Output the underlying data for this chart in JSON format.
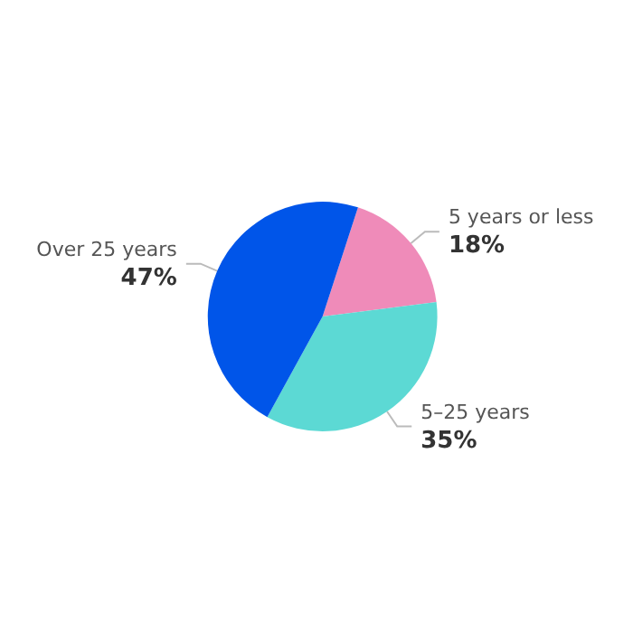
{
  "chart_data": {
    "type": "pie",
    "categories": [
      "5 years or less",
      "5–25 years",
      "Over 25 years"
    ],
    "values": [
      18,
      35,
      47
    ],
    "value_labels": [
      "18%",
      "35%",
      "47%"
    ],
    "colors": [
      "#ef8bb9",
      "#5cd9d4",
      "#0055e9"
    ],
    "legend": false
  }
}
